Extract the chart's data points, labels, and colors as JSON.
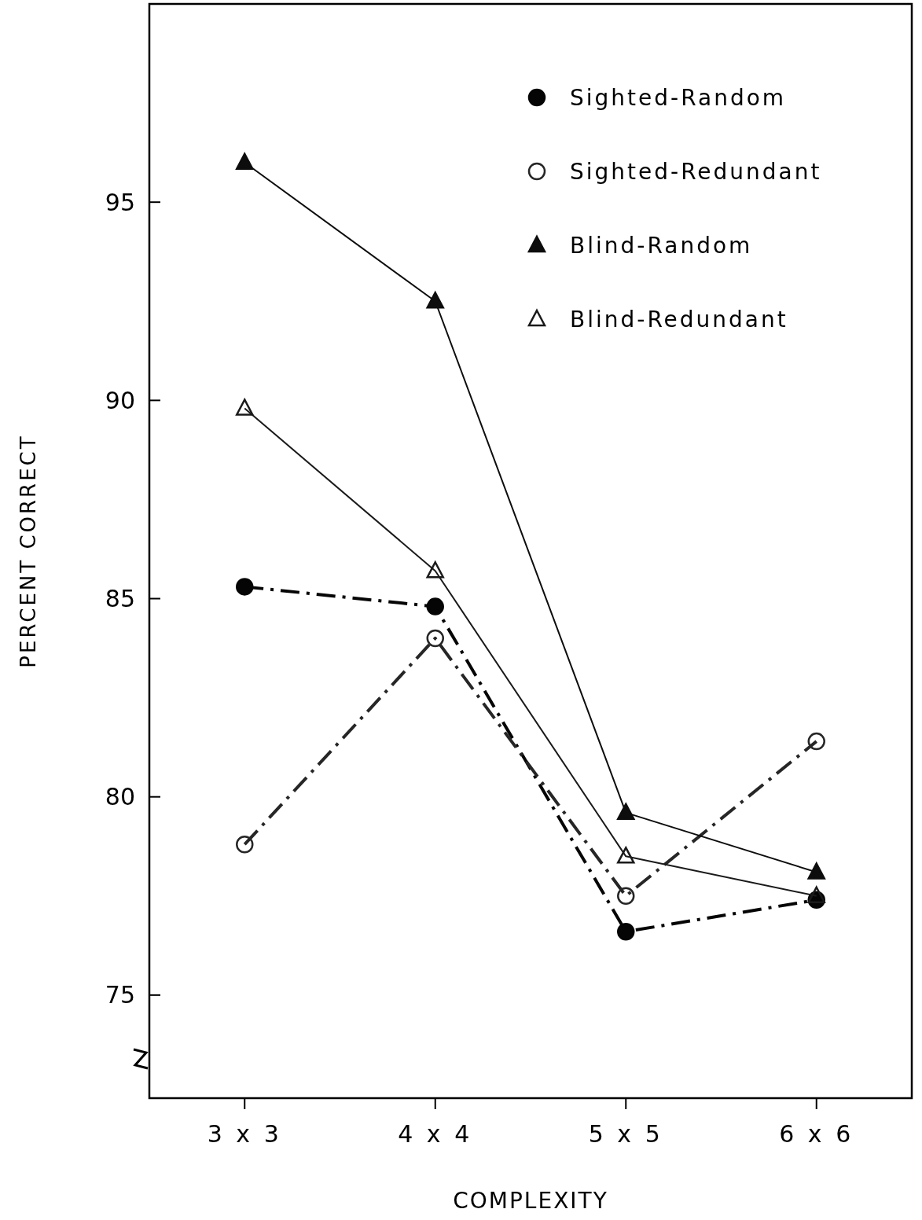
{
  "chart_data": {
    "type": "line",
    "xlabel": "COMPLEXITY",
    "ylabel": "PERCENT CORRECT",
    "categories": [
      "3 x 3",
      "4 x 4",
      "5 x 5",
      "6 x 6"
    ],
    "ylim": [
      72.4,
      100
    ],
    "yticks": [
      75,
      80,
      85,
      90,
      95
    ],
    "grid": false,
    "legend": "top right",
    "series": [
      {
        "name": "Sighted-Random",
        "color": "#050505",
        "values": [
          85.3,
          84.8,
          76.6,
          77.4
        ],
        "marker": "circle",
        "line_style": "dashdot"
      },
      {
        "name": "Sighted-Redundant",
        "color": "#262626",
        "values": [
          78.8,
          84.0,
          77.5,
          81.4
        ],
        "marker": "circle",
        "line_style": "dashdot"
      },
      {
        "name": "Blind-Random",
        "color": "#0d0d0d",
        "values": [
          96.0,
          92.5,
          79.6,
          78.1
        ],
        "marker": "triangle",
        "line_style": "solid"
      },
      {
        "name": "Blind-Redundant",
        "color": "#1a1a1a",
        "values": [
          89.8,
          85.7,
          78.5,
          77.5
        ],
        "marker": "triangle",
        "line_style": "solid"
      }
    ]
  }
}
